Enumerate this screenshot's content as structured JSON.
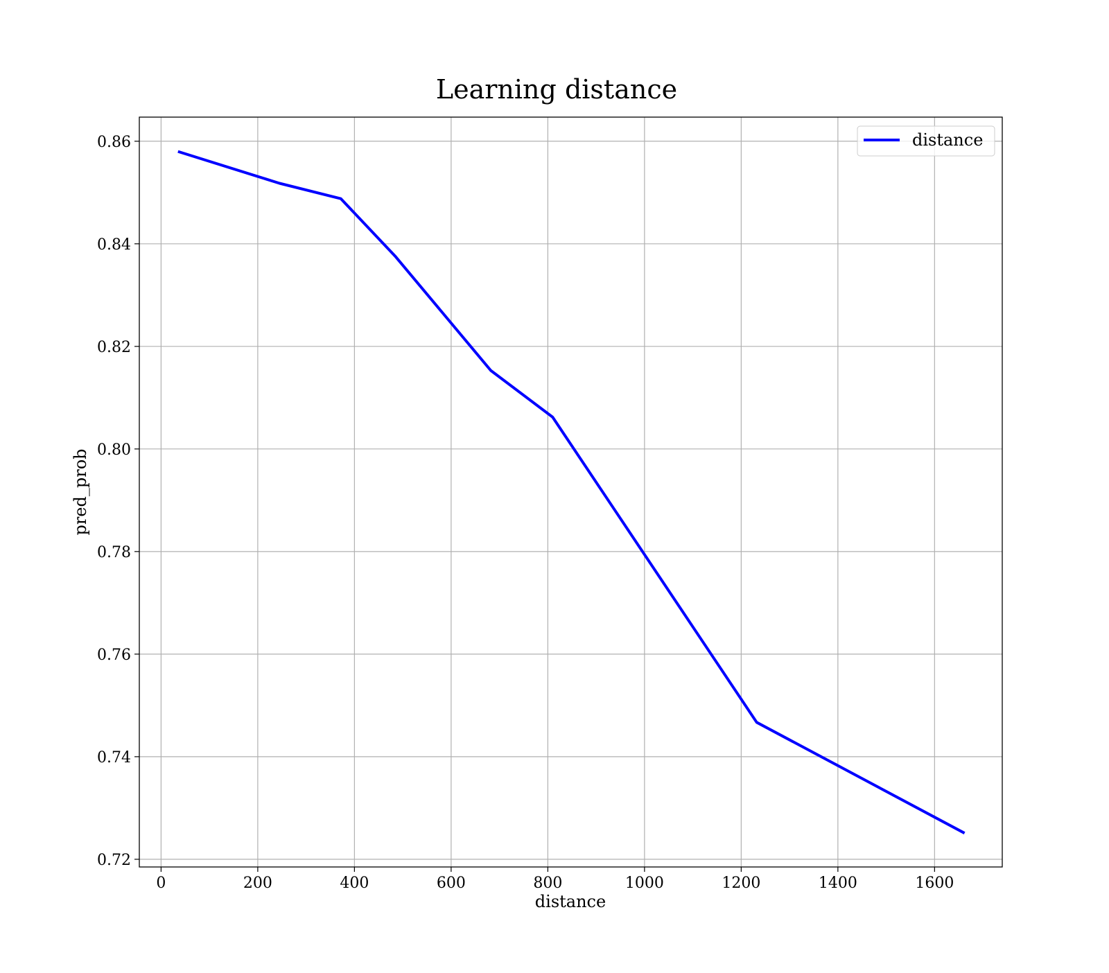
{
  "chart_data": {
    "type": "line",
    "title": "Learning distance",
    "xlabel": "distance",
    "ylabel": "pred_prob",
    "xlim": [
      -45,
      1740
    ],
    "ylim": [
      0.7185,
      0.8647
    ],
    "xticks": [
      0,
      200,
      400,
      600,
      800,
      1000,
      1200,
      1400,
      1600
    ],
    "xtick_labels": [
      "0",
      "200",
      "400",
      "600",
      "800",
      "1000",
      "1200",
      "1400",
      "1600"
    ],
    "yticks": [
      0.72,
      0.74,
      0.76,
      0.78,
      0.8,
      0.82,
      0.84,
      0.86
    ],
    "ytick_labels": [
      "0.72",
      "0.74",
      "0.76",
      "0.78",
      "0.80",
      "0.82",
      "0.84",
      "0.86"
    ],
    "grid": true,
    "legend_position": "top-right",
    "series": [
      {
        "name": "distance",
        "color": "#0000ff",
        "x": [
          35,
          245,
          372,
          485,
          682,
          810,
          1232,
          1662
        ],
        "y": [
          0.858,
          0.8518,
          0.8488,
          0.8375,
          0.8153,
          0.8062,
          0.7467,
          0.7251
        ]
      }
    ]
  }
}
